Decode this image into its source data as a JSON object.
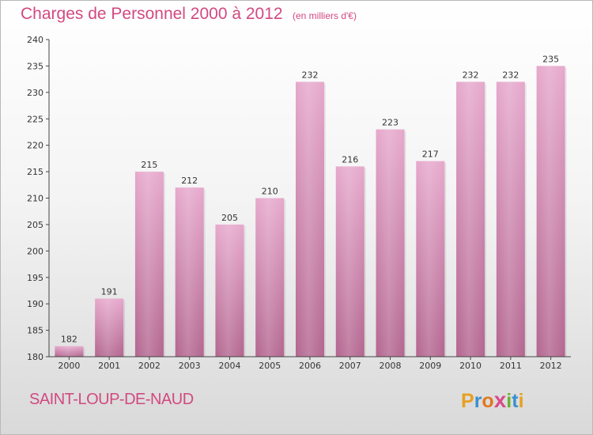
{
  "chart_data": {
    "type": "bar",
    "title": "Charges de Personnel 2000 à 2012",
    "subtitle": "(en milliers d'€)",
    "categories": [
      "2000",
      "2001",
      "2002",
      "2003",
      "2004",
      "2005",
      "2006",
      "2007",
      "2008",
      "2009",
      "2010",
      "2011",
      "2012"
    ],
    "values": [
      182,
      191,
      215,
      212,
      205,
      210,
      232,
      216,
      223,
      217,
      232,
      232,
      235
    ],
    "ylim": [
      180,
      240
    ],
    "yticks": [
      180,
      185,
      190,
      195,
      200,
      205,
      210,
      215,
      220,
      225,
      230,
      235,
      240
    ],
    "xlabel": "",
    "ylabel": "",
    "grid": false,
    "bar_color": "#c97ba6"
  },
  "footer": {
    "town": "SAINT-LOUP-DE-NAUD",
    "brand": "Proxiti"
  }
}
